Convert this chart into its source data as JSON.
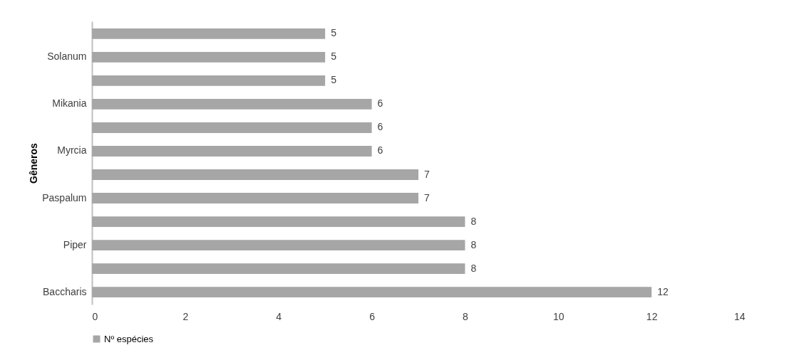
{
  "chart_data": {
    "type": "bar",
    "orientation": "horizontal",
    "ylabel": "Gêneros",
    "categories": [
      null,
      "Solanum",
      null,
      "Mikania",
      null,
      "Myrcia",
      null,
      "Paspalum",
      null,
      "Piper",
      null,
      "Baccharis"
    ],
    "series": [
      {
        "name": "Nº espécies",
        "color": "#a6a6a6",
        "values": [
          5,
          5,
          5,
          6,
          6,
          6,
          7,
          7,
          8,
          8,
          8,
          12
        ]
      }
    ],
    "xlim": [
      0,
      14
    ],
    "xticks": [
      0,
      2,
      4,
      6,
      8,
      10,
      12,
      14
    ],
    "grid": false,
    "legend": "bottom",
    "data_labels": true
  }
}
